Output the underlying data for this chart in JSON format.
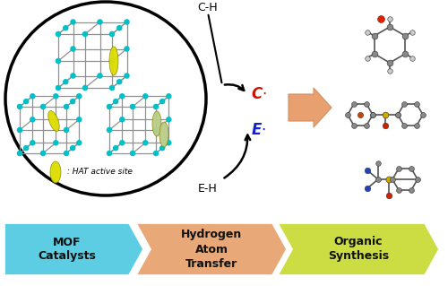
{
  "arrow_colors": {
    "mof": "#5DCDE3",
    "hat": "#E8A878",
    "organic": "#CCDD44"
  },
  "label_color": "#111111",
  "circle_color": "#000000",
  "node_color": "#00C0C8",
  "lattice_color": "#909090",
  "hat_site_color": "#DDDD00",
  "hat_site_color2": "#BBCC88",
  "c_radical_color": "#CC1100",
  "e_radical_color": "#1122CC",
  "bg_color": "#ffffff",
  "big_arrow_color": "#E8A070",
  "text_ch": "C-H",
  "text_eh": "E-H",
  "text_c_rad": "C",
  "text_e_rad": "E",
  "text_hat_legend": " : HAT active site",
  "bottom_labels": [
    "MOF\nCatalysts",
    "Hydrogen\nAtom\nTransfer",
    "Organic\nSynthesis"
  ],
  "figsize": [
    5.0,
    3.19
  ],
  "dpi": 100
}
